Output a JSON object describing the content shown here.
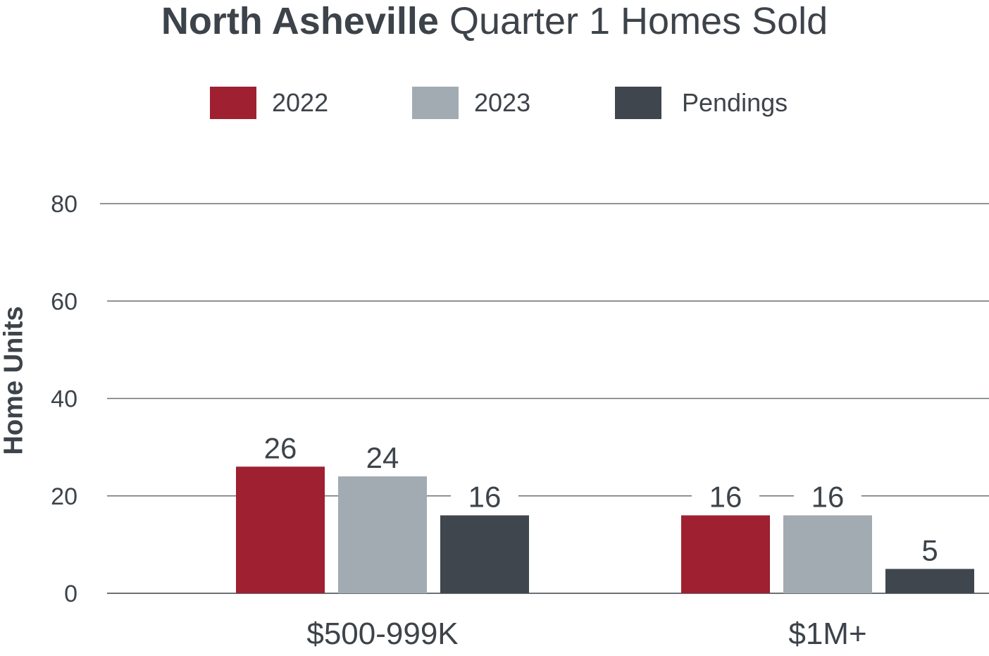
{
  "title": {
    "bold": "North Asheville",
    "regular": "Quarter 1 Homes Sold"
  },
  "colors": {
    "2022": "#9e2031",
    "2023": "#a1abb1",
    "Pendings": "#3f464d",
    "grid": "#6b7075",
    "text": "#3d434a"
  },
  "chart_data": {
    "type": "bar",
    "title": "North Asheville Quarter 1 Homes Sold",
    "ylabel": "Home Units",
    "xlabel": "",
    "categories": [
      "$500-999K",
      "$1M+"
    ],
    "series": [
      {
        "name": "2022",
        "values": [
          26,
          16
        ]
      },
      {
        "name": "2023",
        "values": [
          24,
          16
        ]
      },
      {
        "name": "Pendings",
        "values": [
          16,
          5
        ]
      }
    ],
    "ylim": [
      0,
      80
    ],
    "yticks": [
      0,
      20,
      40,
      60,
      80
    ],
    "grid": true,
    "legend": "top-center"
  }
}
